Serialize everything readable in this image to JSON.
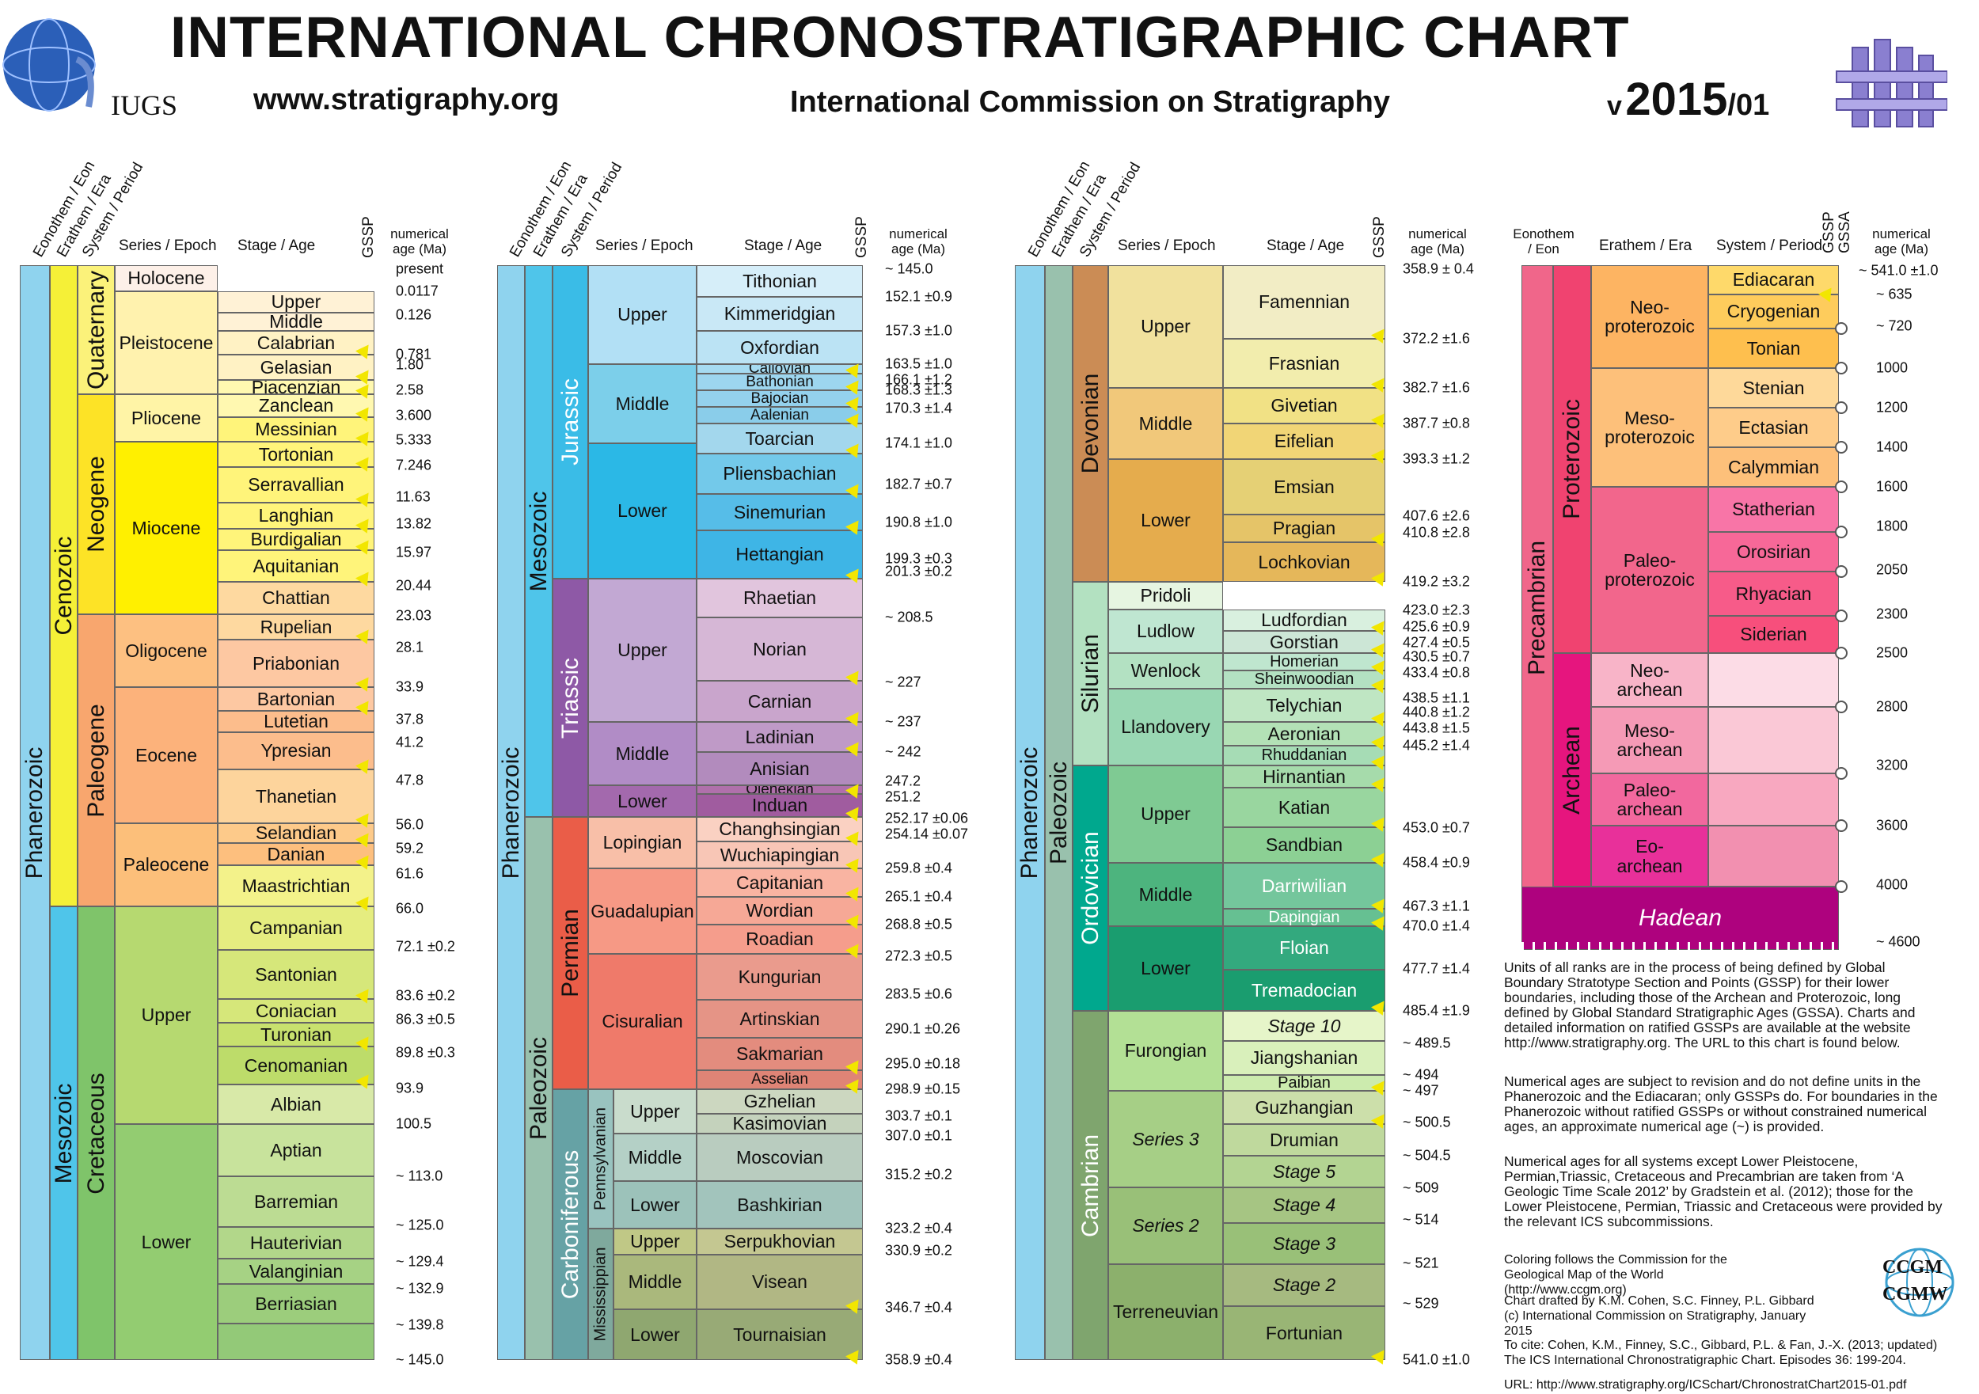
{
  "header": {
    "title": "INTERNATIONAL CHRONOSTRATIGRAPHIC CHART",
    "url": "www.stratigraphy.org",
    "commission": "International Commission on Stratigraphy",
    "version_prefix": "v",
    "version_year": "2015",
    "version_suffix": "/01",
    "iugs": "IUGS"
  },
  "col_headers": {
    "eon": "Eonothem / Eon",
    "era": "Erathem / Era",
    "period": "System / Period",
    "epoch": "Series / Epoch",
    "stage": "Stage / Age",
    "gssp": "GSSP",
    "gssa": "GSSA",
    "age_line1": "numerical",
    "age_line2": "age (Ma)",
    "p4_eon_line1": "Eonothem",
    "p4_eon_line2": "/ Eon"
  },
  "panel1": {
    "eon": "Phanerozoic",
    "eras": [
      "Cenozoic",
      "Mesozoic"
    ],
    "periods": [
      "Quaternary",
      "Neogene",
      "Paleogene",
      "Cretaceous"
    ],
    "epochs": [
      "Holocene",
      "Pleistocene",
      "Pliocene",
      "Miocene",
      "Oligocene",
      "Eocene",
      "Paleocene",
      "Upper",
      "Lower"
    ],
    "stages": [
      "Upper",
      "Middle",
      "Calabrian",
      "Gelasian",
      "Piacenzian",
      "Zanclean",
      "Messinian",
      "Tortonian",
      "Serravallian",
      "Langhian",
      "Burdigalian",
      "Aquitanian",
      "Chattian",
      "Rupelian",
      "Priabonian",
      "Bartonian",
      "Lutetian",
      "Ypresian",
      "Thanetian",
      "Selandian",
      "Danian",
      "Maastrichtian",
      "Campanian",
      "Santonian",
      "Coniacian",
      "Turonian",
      "Cenomanian",
      "Albian",
      "Aptian",
      "Barremian",
      "Hauterivian",
      "Valanginian",
      "Berriasian"
    ],
    "ages": [
      "present",
      "0.0117",
      "0.126",
      "0.781",
      "1.80",
      "2.58",
      "3.600",
      "5.333",
      "7.246",
      "11.63",
      "13.82",
      "15.97",
      "20.44",
      "23.03",
      "28.1",
      "33.9",
      "37.8",
      "41.2",
      "47.8",
      "56.0",
      "59.2",
      "61.6",
      "66.0",
      "72.1 ±0.2",
      "83.6 ±0.2",
      "86.3 ±0.5",
      "89.8 ±0.3",
      "93.9",
      "100.5",
      "~ 113.0",
      "~ 125.0",
      "~ 129.4",
      "~ 132.9",
      "~ 139.8",
      "~ 145.0"
    ]
  },
  "panel2": {
    "eon": "Phanerozoic",
    "eras": [
      "Mesozoic",
      "Paleozoic"
    ],
    "periods": [
      "Jurassic",
      "Triassic",
      "Permian",
      "Carboniferous"
    ],
    "subperiods": [
      "Pennsylvanian",
      "Mississippian"
    ],
    "epochs": [
      "Upper",
      "Middle",
      "Lower",
      "Upper",
      "Middle",
      "Lower",
      "Lopingian",
      "Guadalupian",
      "Cisuralian",
      "Upper",
      "Middle",
      "Lower",
      "Upper",
      "Middle",
      "Lower"
    ],
    "stages": [
      "Tithonian",
      "Kimmeridgian",
      "Oxfordian",
      "Callovian",
      "Bathonian",
      "Bajocian",
      "Aalenian",
      "Toarcian",
      "Pliensbachian",
      "Sinemurian",
      "Hettangian",
      "Rhaetian",
      "Norian",
      "Carnian",
      "Ladinian",
      "Anisian",
      "Olenekian",
      "Induan",
      "Changhsingian",
      "Wuchiapingian",
      "Capitanian",
      "Wordian",
      "Roadian",
      "Kungurian",
      "Artinskian",
      "Sakmarian",
      "Asselian",
      "Gzhelian",
      "Kasimovian",
      "Moscovian",
      "Bashkirian",
      "Serpukhovian",
      "Visean",
      "Tournaisian"
    ],
    "ages": [
      "~ 145.0",
      "152.1 ±0.9",
      "157.3 ±1.0",
      "163.5 ±1.0",
      "166.1 ±1.2",
      "168.3 ±1.3",
      "170.3 ±1.4",
      "174.1 ±1.0",
      "182.7 ±0.7",
      "190.8 ±1.0",
      "199.3 ±0.3",
      "201.3 ±0.2",
      "~ 208.5",
      "~ 227",
      "~ 237",
      "~ 242",
      "247.2",
      "251.2",
      "252.17 ±0.06",
      "254.14 ±0.07",
      "259.8 ±0.4",
      "265.1 ±0.4",
      "268.8 ±0.5",
      "272.3 ±0.5",
      "283.5 ±0.6",
      "290.1 ±0.26",
      "295.0 ±0.18",
      "298.9 ±0.15",
      "303.7 ±0.1",
      "307.0 ±0.1",
      "315.2 ±0.2",
      "323.2 ±0.4",
      "330.9 ±0.2",
      "346.7 ±0.4",
      "358.9 ±0.4"
    ]
  },
  "panel3": {
    "eon": "Phanerozoic",
    "era": "Paleozoic",
    "periods": [
      "Devonian",
      "Silurian",
      "Ordovician",
      "Cambrian"
    ],
    "epochs": [
      "Upper",
      "Middle",
      "Lower",
      "Pridoli",
      "Ludlow",
      "Wenlock",
      "Llandovery",
      "Upper",
      "Middle",
      "Lower",
      "Furongian",
      "Series 3",
      "Series 2",
      "Terreneuvian"
    ],
    "stages": [
      "Famennian",
      "Frasnian",
      "Givetian",
      "Eifelian",
      "Emsian",
      "Pragian",
      "Lochkovian",
      "Ludfordian",
      "Gorstian",
      "Homerian",
      "Sheinwoodian",
      "Telychian",
      "Aeronian",
      "Rhuddanian",
      "Hirnantian",
      "Katian",
      "Sandbian",
      "Darriwilian",
      "Dapingian",
      "Floian",
      "Tremadocian",
      "Stage 10",
      "Jiangshanian",
      "Paibian",
      "Guzhangian",
      "Drumian",
      "Stage 5",
      "Stage 4",
      "Stage 3",
      "Stage 2",
      "Fortunian"
    ],
    "ages": [
      "358.9 ± 0.4",
      "372.2 ±1.6",
      "382.7 ±1.6",
      "387.7 ±0.8",
      "393.3 ±1.2",
      "407.6 ±2.6",
      "410.8 ±2.8",
      "419.2 ±3.2",
      "423.0 ±2.3",
      "425.6 ±0.9",
      "427.4 ±0.5",
      "430.5 ±0.7",
      "433.4 ±0.8",
      "438.5 ±1.1",
      "440.8 ±1.2",
      "443.8 ±1.5",
      "445.2 ±1.4",
      "453.0 ±0.7",
      "458.4 ±0.9",
      "467.3 ±1.1",
      "470.0 ±1.4",
      "477.7 ±1.4",
      "485.4 ±1.9",
      "~ 489.5",
      "~ 494",
      "~ 497",
      "~ 500.5",
      "~ 504.5",
      "~ 509",
      "~ 514",
      "~ 521",
      "~ 529",
      "541.0 ±1.0"
    ]
  },
  "panel4": {
    "eon": "Precambrian",
    "eons": [
      "Proterozoic",
      "Archean"
    ],
    "eras": [
      "Neo-",
      "proterozoic",
      "Meso-",
      "proterozoic",
      "Paleo-",
      "proterozoic",
      "Neo-",
      "archean",
      "Meso-",
      "archean",
      "Paleo-",
      "archean",
      "Eo-",
      "archean"
    ],
    "hadean": "Hadean",
    "periods": [
      "Ediacaran",
      "Cryogenian",
      "Tonian",
      "Stenian",
      "Ectasian",
      "Calymmian",
      "Statherian",
      "Orosirian",
      "Rhyacian",
      "Siderian"
    ],
    "ages": [
      "~ 541.0 ±1.0",
      "~ 635",
      "~ 720",
      "1000",
      "1200",
      "1400",
      "1600",
      "1800",
      "2050",
      "2300",
      "2500",
      "2800",
      "3200",
      "3600",
      "4000",
      "~ 4600"
    ]
  },
  "notes": [
    "Units of all ranks are in the process of being defined by Global Boundary Stratotype Section and Points (GSSP) for their lower boundaries, including those of the Archean and Proterozoic, long defined by Global Standard Stratigraphic Ages (GSSA). Charts and detailed information on ratified GSSPs are available at the website http://www.stratigraphy.org. The URL to this chart is found below.",
    "Numerical ages are subject to revision and do not define units in the Phanerozoic and the Ediacaran; only GSSPs do. For boundaries in the Phanerozoic without ratified GSSPs or without constrained numerical ages, an approximate numerical age (~) is provided.",
    "Numerical ages for all systems except Lower Pleistocene, Permian,Triassic, Cretaceous and Precambrian are taken from ‘A Geologic Time Scale 2012’ by Gradstein et al. (2012); those for the Lower Pleistocene, Permian, Triassic and Cretaceous were provided by the relevant ICS subcommissions.",
    "Coloring follows the Commission for the Geological Map of the World (http://www.ccgm.org)",
    "Chart drafted by K.M. Cohen, S.C. Finney, P.L. Gibbard (c) International Commission on Stratigraphy, January 2015",
    "To cite: Cohen, K.M., Finney, S.C., Gibbard, P.L. & Fan, J.-X. (2013; updated) The ICS International Chronostratigraphic Chart. Episodes 36: 199-204.",
    "URL: http://www.stratigraphy.org/ICSchart/ChronostratChart2015-01.pdf"
  ],
  "ccgm_logo": [
    "CCGM",
    "CGMW"
  ],
  "colors": {
    "flag": "#f2e600"
  }
}
